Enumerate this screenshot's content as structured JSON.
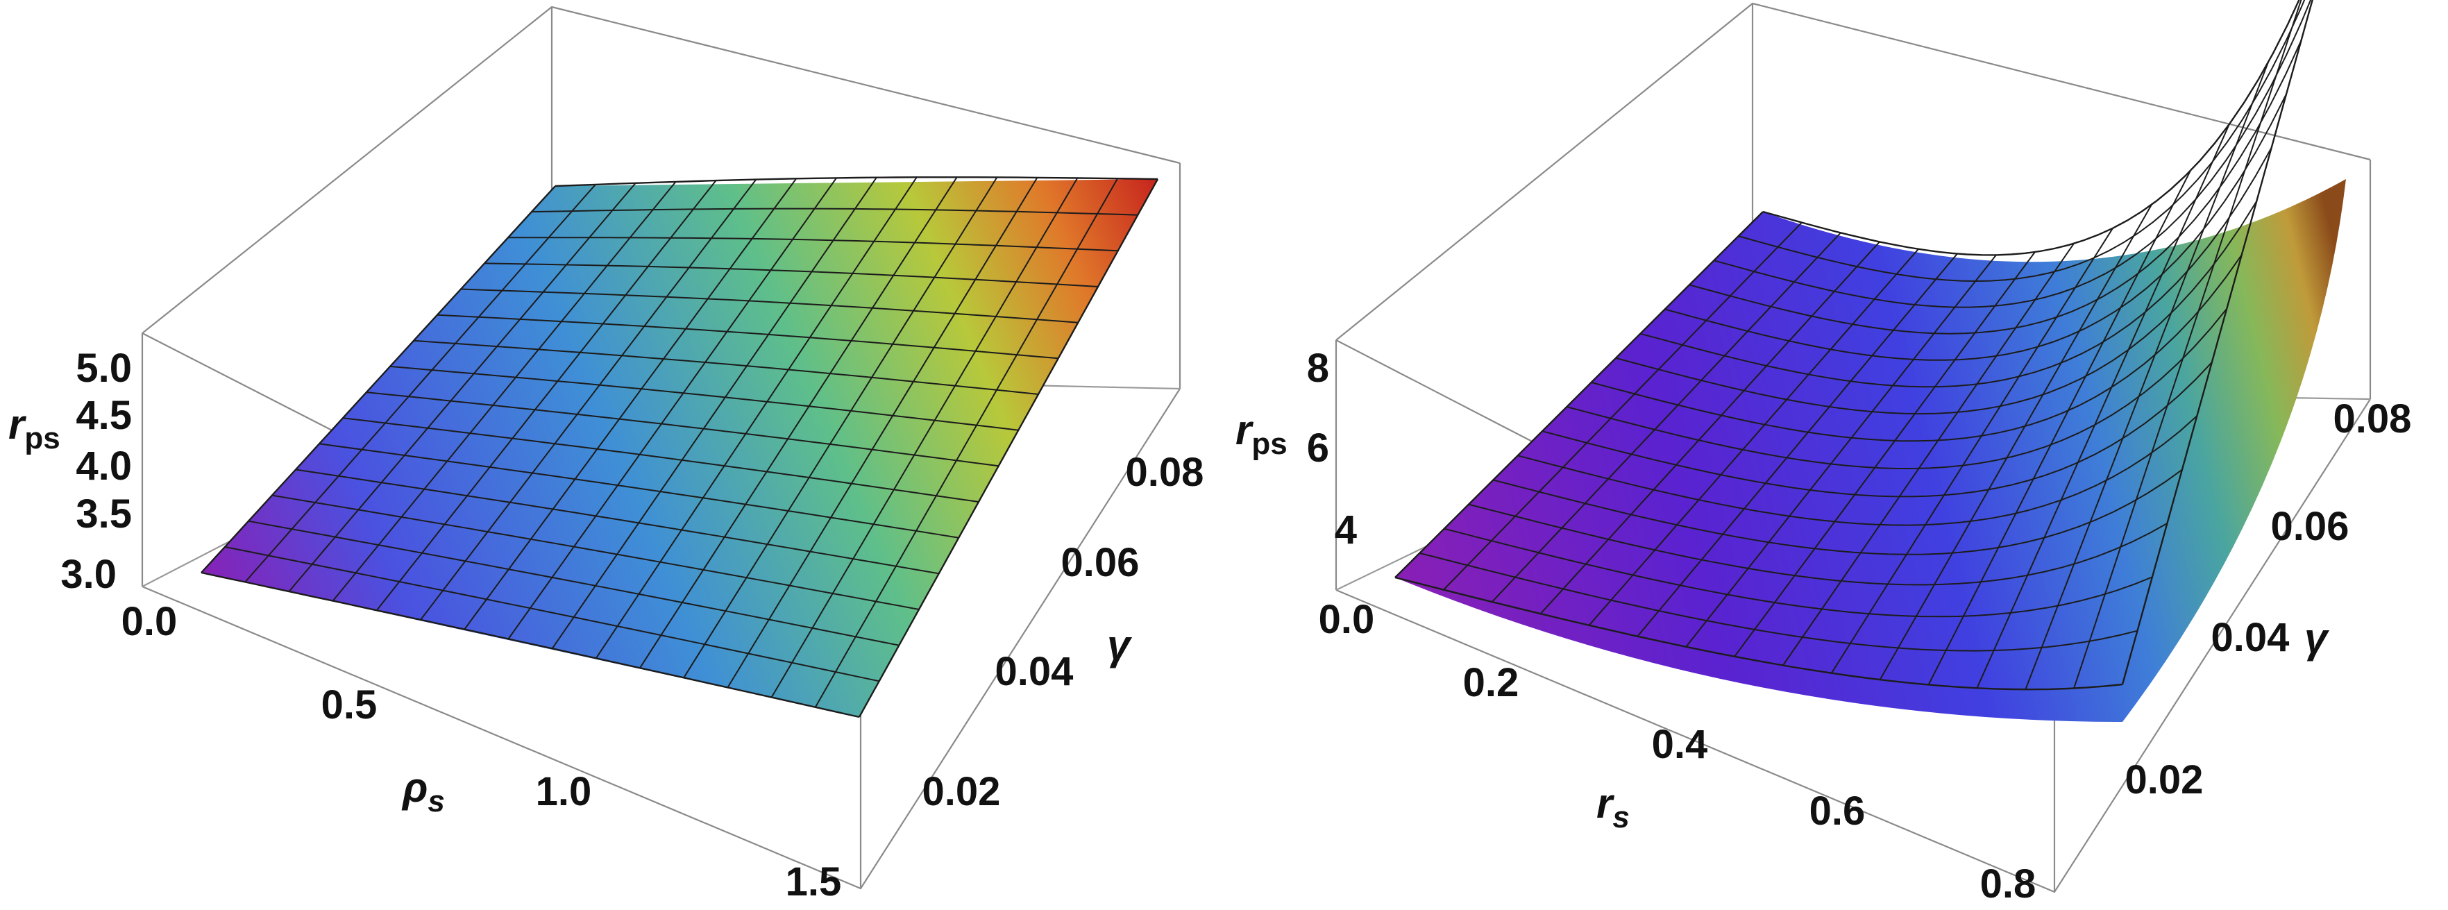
{
  "chart_data": [
    {
      "type": "surface3d",
      "zlabel": "r",
      "zlabel_sub": "ps",
      "xlabel": "ρ",
      "xlabel_sub": "s",
      "ylabel": "γ",
      "x_ticks": [
        "0.0",
        "0.5",
        "1.0",
        "1.5"
      ],
      "y_ticks": [
        "0.02",
        "0.04",
        "0.06",
        "0.08"
      ],
      "z_ticks": [
        "3.0",
        "3.5",
        "4.0",
        "4.5",
        "5.0"
      ],
      "xlim": [
        0,
        1.5
      ],
      "ylim": [
        0,
        0.09
      ],
      "zlim": [
        2.6,
        5.3
      ],
      "corner_values": {
        "x0_y0": 2.9,
        "x1_y0": 3.9,
        "x0_y1": 3.95,
        "x1_y1": 5.3
      },
      "mesh": {
        "x_lines": 15,
        "y_lines": 15
      },
      "colormap": [
        "#8a1fb5",
        "#4a52e0",
        "#3f8fd6",
        "#5fbf8a",
        "#b8c83a",
        "#e0782a",
        "#c8281e"
      ]
    },
    {
      "type": "surface3d",
      "zlabel": "r",
      "zlabel_sub": "ps",
      "xlabel": "r",
      "xlabel_sub": "s",
      "ylabel": "γ",
      "x_ticks": [
        "0.0",
        "0.2",
        "0.4",
        "0.6",
        "0.8"
      ],
      "y_ticks": [
        "0.02",
        "0.04",
        "0.06",
        "0.08"
      ],
      "z_ticks": [
        "4",
        "6",
        "8"
      ],
      "xlim": [
        0,
        0.85
      ],
      "ylim": [
        0,
        0.09
      ],
      "zlim": [
        2.5,
        9
      ],
      "corner_values": {
        "x0_y0": 2.6,
        "x1_y0": 4.2,
        "x0_y1": 3.2,
        "x1_y1": 9.0
      },
      "mesh": {
        "x_lines": 15,
        "y_lines": 15
      },
      "colormap": [
        "#8a1fb5",
        "#5a22d0",
        "#4040e0",
        "#3f7ed8",
        "#4aa5a0",
        "#86b85a",
        "#c09a3a",
        "#8a4a1a"
      ]
    }
  ]
}
